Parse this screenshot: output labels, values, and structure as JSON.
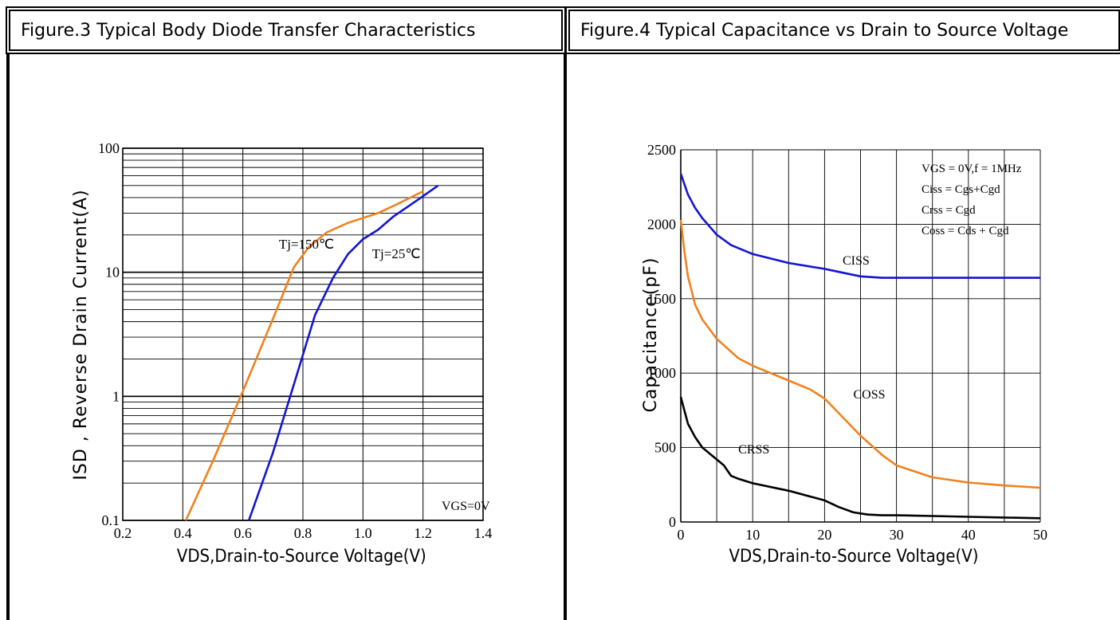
{
  "headers": {
    "left": "Figure.3 Typical Body Diode Transfer Characteristics",
    "right": "Figure.4 Typical Capacitance vs Drain to Source Voltage"
  },
  "chart_data": [
    {
      "type": "line",
      "title": "Figure.3 Typical Body Diode Transfer Characteristics",
      "xlabel": "VDS,Drain-to-Source Voltage(V)",
      "ylabel": "ISD , Reverse Drain Current(A)",
      "xlim": [
        0.2,
        1.4
      ],
      "ylim": [
        0.1,
        100
      ],
      "yscale": "log",
      "grid": true,
      "x_ticks": [
        "0.2",
        "0.4",
        "0.6",
        "0.8",
        "1.0",
        "1.2",
        "1.4"
      ],
      "y_ticks": [
        "0.1",
        "1",
        "10",
        "100"
      ],
      "annotation": "VGS=0V",
      "series": [
        {
          "name": "Tj=150℃",
          "color": "#f0821e",
          "points": [
            [
              0.41,
              0.1
            ],
            [
              0.5,
              0.3
            ],
            [
              0.6,
              1.1
            ],
            [
              0.7,
              4.2
            ],
            [
              0.77,
              11
            ],
            [
              0.82,
              16
            ],
            [
              0.88,
              21
            ],
            [
              0.95,
              25
            ],
            [
              1.05,
              30
            ],
            [
              1.12,
              36
            ],
            [
              1.2,
              45
            ]
          ]
        },
        {
          "name": "Tj=25℃",
          "color": "#1414d2",
          "points": [
            [
              0.62,
              0.1
            ],
            [
              0.7,
              0.35
            ],
            [
              0.78,
              1.5
            ],
            [
              0.84,
              4.5
            ],
            [
              0.9,
              9
            ],
            [
              0.95,
              14
            ],
            [
              1.0,
              18.5
            ],
            [
              1.05,
              22
            ],
            [
              1.1,
              28
            ],
            [
              1.18,
              38
            ],
            [
              1.25,
              50
            ]
          ]
        }
      ]
    },
    {
      "type": "line",
      "title": "Figure.4 Typical Capacitance vs Drain to Source Voltage",
      "xlabel": "VDS,Drain-to-Source Voltage(V)",
      "ylabel": "Capacitance(pF)",
      "xlim": [
        0,
        50
      ],
      "ylim": [
        0,
        2500
      ],
      "grid": true,
      "x_ticks": [
        "0",
        "10",
        "20",
        "30",
        "40",
        "50"
      ],
      "y_ticks": [
        "0",
        "500",
        "1000",
        "1500",
        "2000",
        "2500"
      ],
      "legend_notes": [
        "VGS  = 0V,f = 1MHz",
        "Ciss = Cgs+Cgd",
        "Crss = Cgd",
        "Coss = Cds + Cgd"
      ],
      "series": [
        {
          "name": "CISS",
          "color": "#1414d2",
          "points": [
            [
              0,
              2340
            ],
            [
              1,
              2200
            ],
            [
              2,
              2110
            ],
            [
              3,
              2040
            ],
            [
              5,
              1930
            ],
            [
              7,
              1860
            ],
            [
              10,
              1800
            ],
            [
              15,
              1740
            ],
            [
              20,
              1700
            ],
            [
              22,
              1680
            ],
            [
              25,
              1650
            ],
            [
              28,
              1640
            ],
            [
              30,
              1640
            ],
            [
              35,
              1640
            ],
            [
              40,
              1640
            ],
            [
              45,
              1640
            ],
            [
              50,
              1640
            ]
          ]
        },
        {
          "name": "COSS",
          "color": "#f0821e",
          "points": [
            [
              0,
              2030
            ],
            [
              0.5,
              1820
            ],
            [
              1,
              1650
            ],
            [
              2,
              1460
            ],
            [
              3,
              1360
            ],
            [
              5,
              1230
            ],
            [
              8,
              1100
            ],
            [
              10,
              1050
            ],
            [
              15,
              950
            ],
            [
              18,
              890
            ],
            [
              20,
              830
            ],
            [
              22,
              730
            ],
            [
              25,
              580
            ],
            [
              28,
              450
            ],
            [
              30,
              380
            ],
            [
              35,
              300
            ],
            [
              40,
              265
            ],
            [
              45,
              245
            ],
            [
              50,
              230
            ]
          ]
        },
        {
          "name": "CRSS",
          "color": "#000000",
          "points": [
            [
              0,
              840
            ],
            [
              1,
              660
            ],
            [
              2,
              570
            ],
            [
              3,
              500
            ],
            [
              5,
              420
            ],
            [
              6,
              380
            ],
            [
              7,
              310
            ],
            [
              8,
              290
            ],
            [
              10,
              260
            ],
            [
              15,
              210
            ],
            [
              20,
              145
            ],
            [
              22,
              100
            ],
            [
              24,
              65
            ],
            [
              26,
              50
            ],
            [
              28,
              45
            ],
            [
              30,
              45
            ],
            [
              35,
              40
            ],
            [
              40,
              35
            ],
            [
              45,
              30
            ],
            [
              50,
              25
            ]
          ]
        }
      ]
    }
  ]
}
